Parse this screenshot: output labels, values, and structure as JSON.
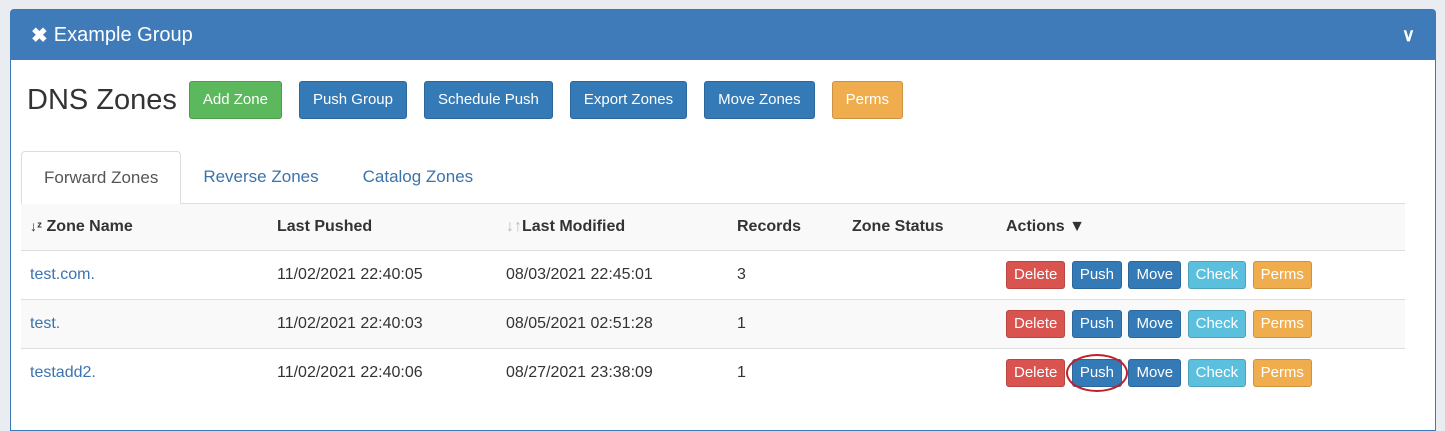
{
  "panel": {
    "title": "Example Group",
    "close_icon": "times-icon",
    "collapse_icon": "chevron-down-icon"
  },
  "page_title": "DNS Zones",
  "toolbar": {
    "add_zone": "Add Zone",
    "push_group": "Push Group",
    "schedule_push": "Schedule Push",
    "export_zones": "Export Zones",
    "move_zones": "Move Zones",
    "perms": "Perms"
  },
  "tabs": [
    {
      "label": "Forward Zones",
      "active": true
    },
    {
      "label": "Reverse Zones"
    },
    {
      "label": "Catalog Zones"
    }
  ],
  "table": {
    "headers": [
      "Zone Name",
      "Last Pushed",
      "Last Modified",
      "Records",
      "Zone Status",
      "Actions"
    ],
    "rows": [
      {
        "name": "test.com.",
        "last_pushed": "11/02/2021 22:40:05",
        "last_modified": "08/03/2021 22:45:01",
        "records": "3",
        "status": ""
      },
      {
        "name": "test.",
        "last_pushed": "11/02/2021 22:40:03",
        "last_modified": "08/05/2021 02:51:28",
        "records": "1",
        "status": ""
      },
      {
        "name": "testadd2.",
        "last_pushed": "11/02/2021 22:40:06",
        "last_modified": "08/27/2021 23:38:09",
        "records": "1",
        "status": ""
      }
    ],
    "actions": {
      "delete": "Delete",
      "push": "Push",
      "move": "Move",
      "check": "Check",
      "perms": "Perms"
    }
  },
  "colors": {
    "header": "#3f7bb9",
    "success": "#5cb85c",
    "primary": "#337ab7",
    "warning": "#f0ad4e",
    "danger": "#d9534f",
    "info": "#5bc0de",
    "highlight_circle": "#c0202a"
  }
}
